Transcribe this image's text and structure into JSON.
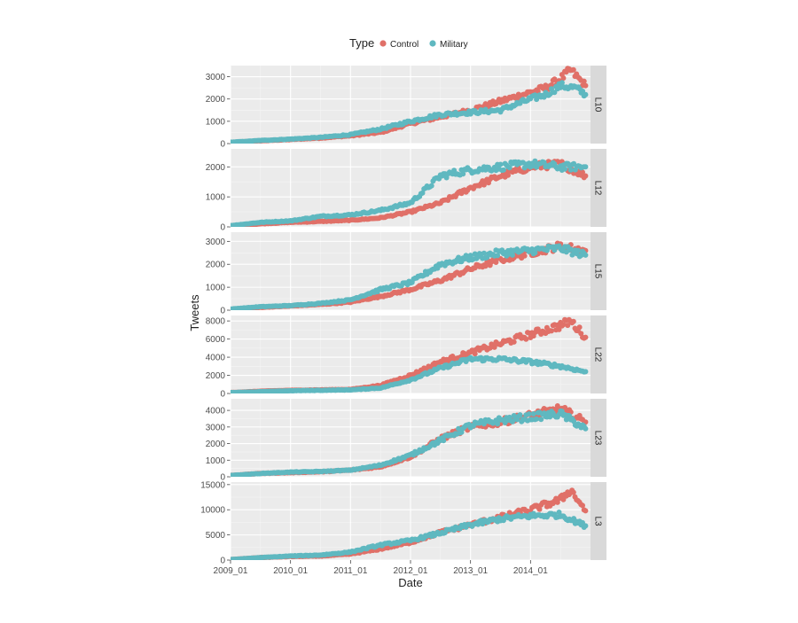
{
  "chart_data": {
    "type": "scatter",
    "xlabel": "Date",
    "ylabel": "Tweets",
    "x_range": [
      "2009-01",
      "2014-12"
    ],
    "x_ticks": [
      "2009_01",
      "2010_01",
      "2011_01",
      "2012_01",
      "2013_01",
      "2014_01"
    ],
    "legend": {
      "title": "Type",
      "placement": "top-center",
      "entries": [
        {
          "label": "Control",
          "color": "#E07068"
        },
        {
          "label": "Military",
          "color": "#5FB8C0"
        }
      ]
    },
    "grid": true,
    "facets": [
      {
        "label": "L10",
        "ylim": [
          0,
          3500
        ],
        "y_ticks": [
          0,
          1000,
          2000,
          3000
        ],
        "series": [
          {
            "name": "Control",
            "points": [
              [
                "2009-01",
                50
              ],
              [
                "2009-07",
                120
              ],
              [
                "2010-01",
                180
              ],
              [
                "2010-07",
                250
              ],
              [
                "2011-01",
                350
              ],
              [
                "2011-07",
                500
              ],
              [
                "2012-01",
                900
              ],
              [
                "2012-07",
                1200
              ],
              [
                "2013-01",
                1500
              ],
              [
                "2013-07",
                1900
              ],
              [
                "2014-01",
                2300
              ],
              [
                "2014-04",
                2500
              ],
              [
                "2014-07",
                2900
              ],
              [
                "2014-09",
                3300
              ],
              [
                "2014-12",
                2600
              ]
            ]
          },
          {
            "name": "Military",
            "points": [
              [
                "2009-01",
                60
              ],
              [
                "2009-07",
                140
              ],
              [
                "2010-01",
                200
              ],
              [
                "2010-07",
                280
              ],
              [
                "2011-01",
                400
              ],
              [
                "2011-07",
                650
              ],
              [
                "2012-01",
                1000
              ],
              [
                "2012-07",
                1300
              ],
              [
                "2013-01",
                1400
              ],
              [
                "2013-07",
                1500
              ],
              [
                "2014-01",
                2000
              ],
              [
                "2014-04",
                2200
              ],
              [
                "2014-07",
                2600
              ],
              [
                "2014-10",
                2500
              ],
              [
                "2014-12",
                2200
              ]
            ]
          }
        ]
      },
      {
        "label": "L12",
        "ylim": [
          0,
          2600
        ],
        "y_ticks": [
          0,
          1000,
          2000
        ],
        "series": [
          {
            "name": "Control",
            "points": [
              [
                "2009-01",
                40
              ],
              [
                "2009-07",
                100
              ],
              [
                "2010-01",
                150
              ],
              [
                "2010-07",
                180
              ],
              [
                "2011-01",
                220
              ],
              [
                "2011-07",
                300
              ],
              [
                "2012-01",
                500
              ],
              [
                "2012-07",
                800
              ],
              [
                "2013-01",
                1300
              ],
              [
                "2013-07",
                1700
              ],
              [
                "2014-01",
                2000
              ],
              [
                "2014-07",
                2100
              ],
              [
                "2014-12",
                1700
              ]
            ]
          },
          {
            "name": "Military",
            "points": [
              [
                "2009-01",
                40
              ],
              [
                "2009-07",
                150
              ],
              [
                "2010-01",
                200
              ],
              [
                "2010-07",
                350
              ],
              [
                "2011-01",
                400
              ],
              [
                "2011-07",
                550
              ],
              [
                "2012-01",
                800
              ],
              [
                "2012-07",
                1700
              ],
              [
                "2013-01",
                1900
              ],
              [
                "2013-07",
                2000
              ],
              [
                "2014-01",
                2100
              ],
              [
                "2014-07",
                2000
              ],
              [
                "2014-12",
                2000
              ]
            ]
          }
        ]
      },
      {
        "label": "L15",
        "ylim": [
          0,
          3400
        ],
        "y_ticks": [
          0,
          1000,
          2000,
          3000
        ],
        "series": [
          {
            "name": "Control",
            "points": [
              [
                "2009-01",
                40
              ],
              [
                "2009-07",
                120
              ],
              [
                "2010-01",
                180
              ],
              [
                "2010-07",
                250
              ],
              [
                "2011-01",
                350
              ],
              [
                "2011-07",
                600
              ],
              [
                "2012-01",
                900
              ],
              [
                "2012-07",
                1300
              ],
              [
                "2013-01",
                1800
              ],
              [
                "2013-07",
                2200
              ],
              [
                "2014-01",
                2500
              ],
              [
                "2014-07",
                2800
              ],
              [
                "2014-12",
                2600
              ]
            ]
          },
          {
            "name": "Military",
            "points": [
              [
                "2009-01",
                50
              ],
              [
                "2009-07",
                150
              ],
              [
                "2010-01",
                200
              ],
              [
                "2010-07",
                300
              ],
              [
                "2011-01",
                450
              ],
              [
                "2011-07",
                900
              ],
              [
                "2012-01",
                1200
              ],
              [
                "2012-07",
                2000
              ],
              [
                "2013-01",
                2300
              ],
              [
                "2013-07",
                2500
              ],
              [
                "2014-01",
                2600
              ],
              [
                "2014-07",
                2700
              ],
              [
                "2014-12",
                2400
              ]
            ]
          }
        ]
      },
      {
        "label": "L22",
        "ylim": [
          0,
          8600
        ],
        "y_ticks": [
          0,
          2000,
          4000,
          6000,
          8000
        ],
        "series": [
          {
            "name": "Control",
            "points": [
              [
                "2009-01",
                100
              ],
              [
                "2009-07",
                250
              ],
              [
                "2010-01",
                350
              ],
              [
                "2010-07",
                400
              ],
              [
                "2011-01",
                450
              ],
              [
                "2011-07",
                900
              ],
              [
                "2012-01",
                2000
              ],
              [
                "2012-07",
                3500
              ],
              [
                "2013-01",
                4500
              ],
              [
                "2013-07",
                5500
              ],
              [
                "2014-01",
                6500
              ],
              [
                "2014-07",
                7500
              ],
              [
                "2014-09",
                8000
              ],
              [
                "2014-12",
                6200
              ]
            ]
          },
          {
            "name": "Military",
            "points": [
              [
                "2009-01",
                100
              ],
              [
                "2009-07",
                200
              ],
              [
                "2010-01",
                300
              ],
              [
                "2010-07",
                350
              ],
              [
                "2011-01",
                400
              ],
              [
                "2011-07",
                600
              ],
              [
                "2012-01",
                1500
              ],
              [
                "2012-07",
                2800
              ],
              [
                "2013-01",
                3800
              ],
              [
                "2013-07",
                3800
              ],
              [
                "2014-01",
                3500
              ],
              [
                "2014-07",
                3000
              ],
              [
                "2014-12",
                2400
              ]
            ]
          }
        ]
      },
      {
        "label": "L23",
        "ylim": [
          0,
          4700
        ],
        "y_ticks": [
          0,
          1000,
          2000,
          3000,
          4000
        ],
        "series": [
          {
            "name": "Control",
            "points": [
              [
                "2009-01",
                80
              ],
              [
                "2009-07",
                200
              ],
              [
                "2010-01",
                250
              ],
              [
                "2010-07",
                300
              ],
              [
                "2011-01",
                400
              ],
              [
                "2011-07",
                600
              ],
              [
                "2012-01",
                1200
              ],
              [
                "2012-07",
                2300
              ],
              [
                "2013-01",
                3000
              ],
              [
                "2013-07",
                3300
              ],
              [
                "2014-01",
                3700
              ],
              [
                "2014-07",
                4100
              ],
              [
                "2014-12",
                3300
              ]
            ]
          },
          {
            "name": "Military",
            "points": [
              [
                "2009-01",
                80
              ],
              [
                "2009-07",
                200
              ],
              [
                "2010-01",
                280
              ],
              [
                "2010-07",
                320
              ],
              [
                "2011-01",
                400
              ],
              [
                "2011-07",
                700
              ],
              [
                "2012-01",
                1300
              ],
              [
                "2012-07",
                2200
              ],
              [
                "2013-01",
                3100
              ],
              [
                "2013-07",
                3400
              ],
              [
                "2014-01",
                3600
              ],
              [
                "2014-07",
                3800
              ],
              [
                "2014-12",
                2900
              ]
            ]
          }
        ]
      },
      {
        "label": "L3",
        "ylim": [
          0,
          15500
        ],
        "y_ticks": [
          0,
          5000,
          10000,
          15000
        ],
        "series": [
          {
            "name": "Control",
            "points": [
              [
                "2009-01",
                100
              ],
              [
                "2009-07",
                500
              ],
              [
                "2010-01",
                700
              ],
              [
                "2010-07",
                800
              ],
              [
                "2011-01",
                1200
              ],
              [
                "2011-07",
                2200
              ],
              [
                "2012-01",
                3500
              ],
              [
                "2012-07",
                5500
              ],
              [
                "2013-01",
                7000
              ],
              [
                "2013-07",
                8500
              ],
              [
                "2014-01",
                10000
              ],
              [
                "2014-07",
                12000
              ],
              [
                "2014-09",
                14000
              ],
              [
                "2014-12",
                9800
              ]
            ]
          },
          {
            "name": "Military",
            "points": [
              [
                "2009-01",
                100
              ],
              [
                "2009-07",
                500
              ],
              [
                "2010-01",
                800
              ],
              [
                "2010-07",
                1000
              ],
              [
                "2011-01",
                1600
              ],
              [
                "2011-07",
                3000
              ],
              [
                "2012-01",
                3900
              ],
              [
                "2012-07",
                5400
              ],
              [
                "2013-01",
                7000
              ],
              [
                "2013-07",
                8200
              ],
              [
                "2014-01",
                8800
              ],
              [
                "2014-07",
                9000
              ],
              [
                "2014-12",
                6800
              ]
            ]
          }
        ]
      }
    ]
  }
}
